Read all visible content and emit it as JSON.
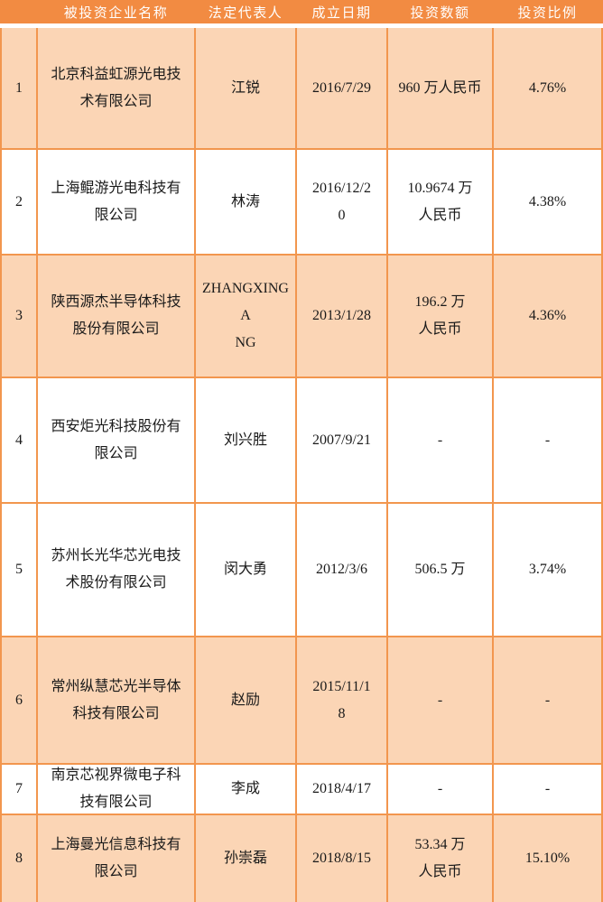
{
  "header": {
    "columns": [
      "",
      "被投资企业名称",
      "法定代表人",
      "成立日期",
      "投资数额",
      "投资比例"
    ]
  },
  "rows": [
    {
      "no": "1",
      "name": "北京科益虹源光电技\n术有限公司",
      "rep": "江锐",
      "date": "2016/7/29",
      "amount": "960 万人民币",
      "ratio": "4.76%"
    },
    {
      "no": "2",
      "name": "上海鲲游光电科技有\n限公司",
      "rep": "林涛",
      "date": "2016/12/2\n0",
      "amount": "10.9674 万\n人民币",
      "ratio": "4.38%"
    },
    {
      "no": "3",
      "name": "陕西源杰半导体科技\n股份有限公司",
      "rep": "ZHANGXINGA\nNG",
      "date": "2013/1/28",
      "amount": "196.2 万\n人民币",
      "ratio": "4.36%"
    },
    {
      "no": "4",
      "name": "西安炬光科技股份有\n限公司",
      "rep": "刘兴胜",
      "date": "2007/9/21",
      "amount": "-",
      "ratio": "-"
    },
    {
      "no": "5",
      "name": "苏州长光华芯光电技\n术股份有限公司",
      "rep": "闵大勇",
      "date": "2012/3/6",
      "amount": "506.5 万",
      "ratio": "3.74%"
    },
    {
      "no": "6",
      "name": "常州纵慧芯光半导体\n科技有限公司",
      "rep": "赵励",
      "date": "2015/11/1\n8",
      "amount": "-",
      "ratio": "-"
    },
    {
      "no": "7",
      "name": "南京芯视界微电子科\n技有限公司",
      "rep": "李成",
      "date": "2018/4/17",
      "amount": "-",
      "ratio": "-"
    },
    {
      "no": "8",
      "name": "上海曼光信息科技有\n限公司",
      "rep": "孙崇磊",
      "date": "2018/8/15",
      "amount": "53.34 万\n人民币",
      "ratio": "15.10%"
    }
  ],
  "colors": {
    "header_bg": "#F28B42",
    "row_alt_bg": "#FBD5B5",
    "row_bg": "#FFFFFF",
    "border": "#F2964E",
    "header_text": "#FFFFFF",
    "cell_text": "#1A1A1A"
  }
}
